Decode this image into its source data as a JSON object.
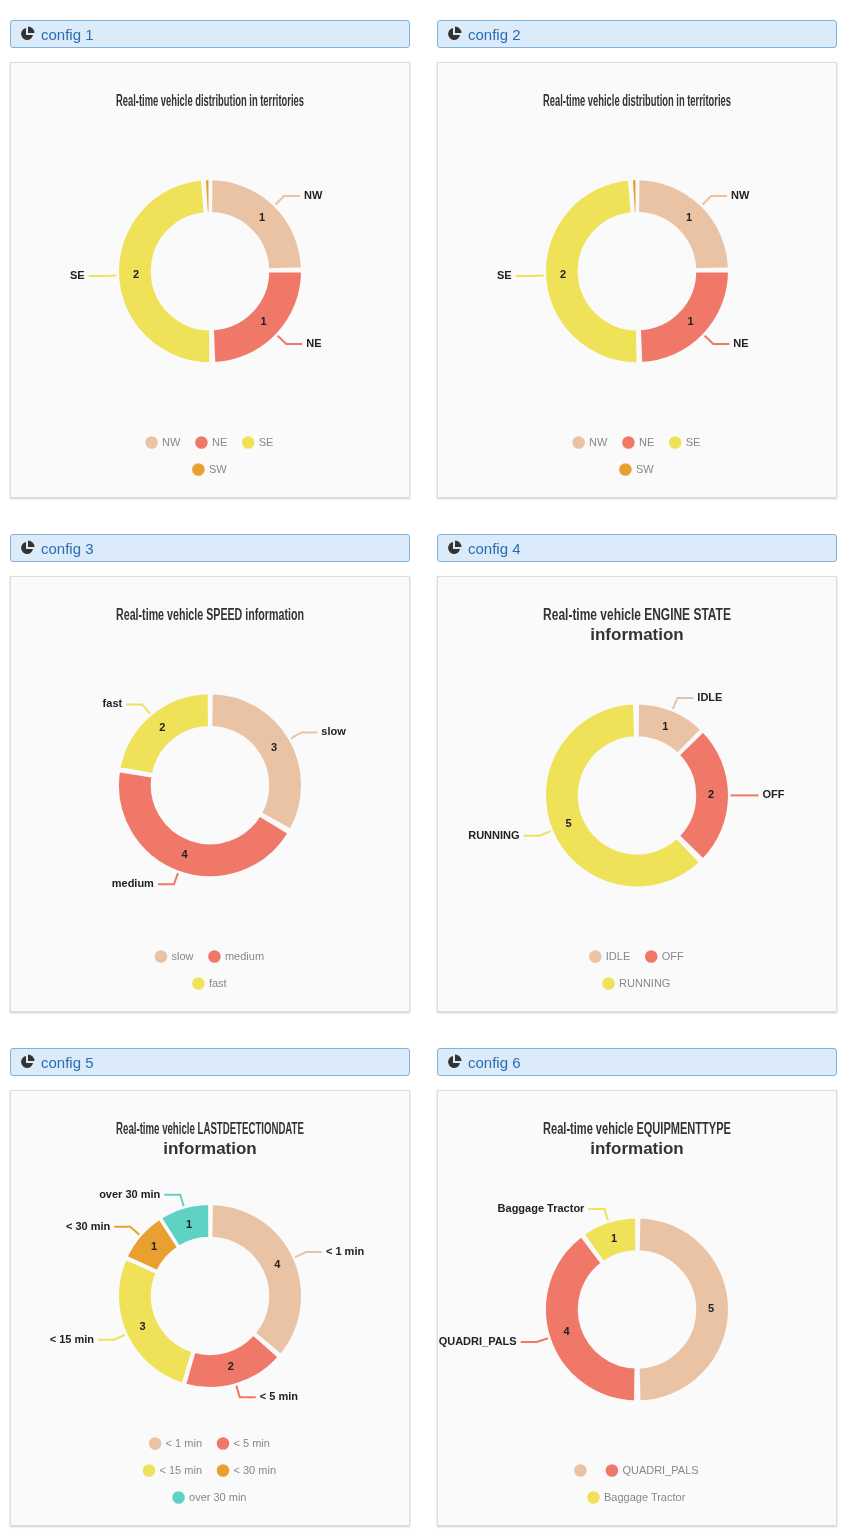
{
  "chart_data": [
    {
      "type": "donut",
      "title": "Real-time vehicle distribution in territories",
      "annotations": [
        "config 1"
      ],
      "categories": [
        "NW",
        "NE",
        "SE",
        "SW"
      ],
      "values": [
        1,
        1,
        2,
        0.04
      ],
      "value_labels": [
        "1",
        "1",
        "2",
        null
      ],
      "colors": [
        "#e9c3a4",
        "#f07868",
        "#f0e258",
        "#e8a030"
      ],
      "legend": "bottom"
    },
    {
      "type": "donut",
      "title": "Real-time vehicle distribution in territories",
      "annotations": [
        "config 2"
      ],
      "categories": [
        "NW",
        "NE",
        "SE",
        "SW"
      ],
      "values": [
        1,
        1,
        2,
        0.04
      ],
      "value_labels": [
        "1",
        "1",
        "2",
        null
      ],
      "colors": [
        "#e9c3a4",
        "#f07868",
        "#f0e258",
        "#e8a030"
      ],
      "legend": "bottom"
    },
    {
      "type": "donut",
      "title": "Real-time vehicle SPEED information",
      "annotations": [
        "config 3"
      ],
      "categories": [
        "slow",
        "medium",
        "fast"
      ],
      "values": [
        3,
        4,
        2
      ],
      "value_labels": [
        "3",
        "4",
        "2"
      ],
      "colors": [
        "#e9c3a4",
        "#f07868",
        "#f0e258"
      ],
      "legend": "bottom"
    },
    {
      "type": "donut",
      "title": "Real-time vehicle ENGINE STATE information",
      "annotations": [
        "config 4"
      ],
      "categories": [
        "IDLE",
        "OFF",
        "RUNNING"
      ],
      "values": [
        1,
        2,
        5
      ],
      "value_labels": [
        "1",
        "2",
        "5"
      ],
      "colors": [
        "#e9c3a4",
        "#f07868",
        "#f0e258"
      ],
      "legend": "bottom"
    },
    {
      "type": "donut",
      "title": "Real-time vehicle LASTDETECTIONDATE information",
      "annotations": [
        "config 5"
      ],
      "categories": [
        "< 1 min",
        "< 5 min",
        "< 15 min",
        "< 30 min",
        "over 30 min"
      ],
      "values": [
        4,
        2,
        3,
        1,
        1
      ],
      "value_labels": [
        "4",
        "2",
        "3",
        "1",
        "1"
      ],
      "colors": [
        "#e9c3a4",
        "#f07868",
        "#f0e258",
        "#e8a030",
        "#5fd3c3"
      ],
      "legend": "bottom"
    },
    {
      "type": "donut",
      "title": "Real-time vehicle EQUIPMENTTYPE information",
      "annotations": [
        "config 6"
      ],
      "categories": [
        null,
        "QUADRI_PALS",
        "Baggage Tractor"
      ],
      "values": [
        5,
        4,
        1
      ],
      "value_labels": [
        "5",
        "4",
        "1"
      ],
      "colors": [
        "#e9c3a4",
        "#f07868",
        "#f0e258"
      ],
      "legend": "bottom"
    }
  ]
}
